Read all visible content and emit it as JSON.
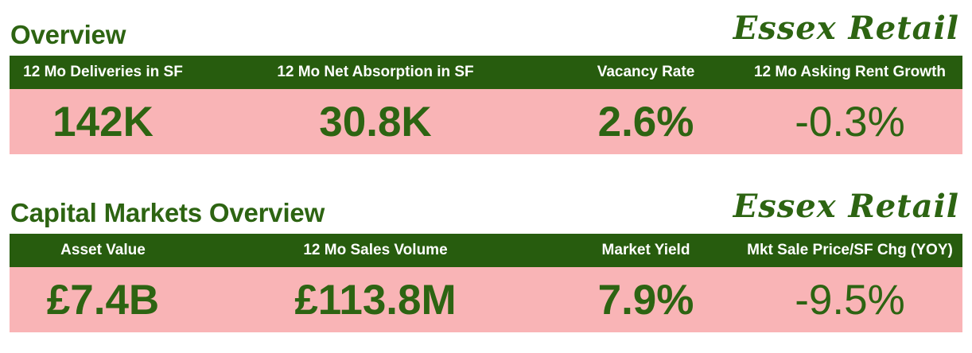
{
  "brand": "Essex Retail",
  "overview": {
    "title": "Overview",
    "headers": [
      "12 Mo Deliveries in SF",
      "12 Mo Net Absorption in SF",
      "Vacancy Rate",
      "12 Mo Asking Rent Growth"
    ],
    "values": [
      "142K",
      "30.8K",
      "2.6%",
      "-0.3%"
    ]
  },
  "capital_markets": {
    "title": "Capital Markets Overview",
    "headers": [
      "Asset Value",
      "12 Mo Sales Volume",
      "Market Yield",
      "Mkt Sale Price/SF Chg (YOY)"
    ],
    "values": [
      "£7.4B",
      "£113.8M",
      "7.9%",
      "-9.5%"
    ]
  },
  "colors": {
    "green_text": "#2d6412",
    "header_bg": "#275c0e",
    "value_bg": "#f9b4b6",
    "header_text": "#ffffff"
  }
}
